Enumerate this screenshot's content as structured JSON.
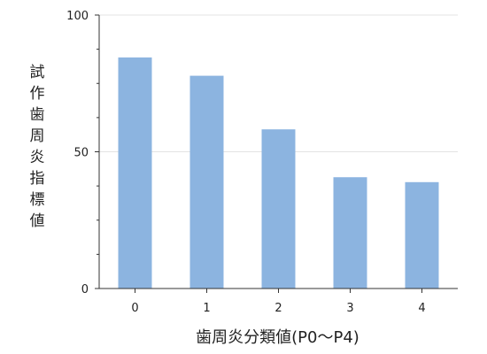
{
  "chart_data": {
    "type": "bar",
    "categories": [
      "0",
      "1",
      "2",
      "3",
      "4"
    ],
    "values": [
      84.5,
      77.8,
      58.2,
      40.7,
      38.9
    ],
    "title": "",
    "xlabel": "歯周炎分類値(P0〜P4)",
    "ylabel": "試作歯周炎指標値",
    "ylim": [
      0,
      100
    ],
    "yticks": [
      "0",
      "50",
      "100"
    ],
    "grid": true,
    "bar_color": "#8cb4e0",
    "axis_color": "#333333",
    "grid_color": "#e3e3e3"
  }
}
